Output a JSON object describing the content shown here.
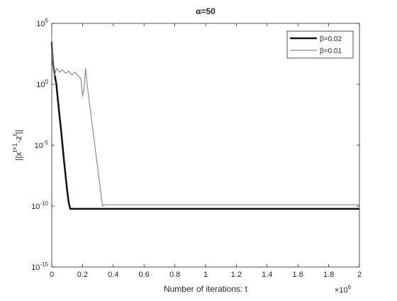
{
  "chart_data": {
    "type": "line",
    "title": "α=50",
    "xlabel": "Number of iterations: t",
    "x_multiplier": {
      "base": "×10",
      "exponent": "6"
    },
    "ylabel": [
      {
        "text": "||x"
      },
      {
        "text": "t+1",
        "sup": true
      },
      {
        "text": "-z"
      },
      {
        "text": "t",
        "sup": true
      },
      {
        "text": "||"
      }
    ],
    "xlim": [
      0,
      2
    ],
    "xticks": [
      0,
      0.2,
      0.4,
      0.6,
      0.8,
      1,
      1.2,
      1.4,
      1.6,
      1.8,
      2
    ],
    "ylim": [
      1e-15,
      100000
    ],
    "log_y": true,
    "yticks": [
      {
        "value": 1e-15,
        "label": "10",
        "exponent": "-15"
      },
      {
        "value": 1e-10,
        "label": "10",
        "exponent": "-10"
      },
      {
        "value": 1e-05,
        "label": "10",
        "exponent": "-5"
      },
      {
        "value": 1,
        "label": "10",
        "exponent": "0"
      },
      {
        "value": 100000,
        "label": "10",
        "exponent": "5"
      }
    ],
    "legend": "upper right",
    "series": [
      {
        "name": "β=0.02",
        "color": "#111111",
        "width": 2.5,
        "x": [
          0,
          0.005,
          0.01,
          0.02,
          0.03,
          0.04,
          0.05,
          0.06,
          0.07,
          0.08,
          0.09,
          0.1,
          0.11,
          0.12,
          0.13,
          2
        ],
        "values": [
          3000,
          200,
          30,
          5,
          1,
          0.05,
          0.003,
          0.0002,
          1e-05,
          5e-07,
          3e-08,
          2e-09,
          2e-10,
          6e-11,
          6e-11,
          6e-11
        ]
      },
      {
        "name": "β=0.01",
        "color": "#8a8a8a",
        "width": 1.2,
        "x": [
          0,
          0.005,
          0.01,
          0.02,
          0.03,
          0.05,
          0.07,
          0.09,
          0.11,
          0.13,
          0.15,
          0.17,
          0.19,
          0.2,
          0.21,
          0.22,
          0.23,
          0.25,
          0.27,
          0.29,
          0.31,
          0.33,
          0.34,
          2
        ],
        "values": [
          10000,
          300,
          20,
          5,
          20,
          10,
          15,
          8,
          12,
          6,
          10,
          5,
          3,
          0.1,
          0.5,
          20,
          1,
          0.01,
          0.0001,
          1e-06,
          1e-08,
          1e-10,
          1.3e-10,
          1.3e-10
        ]
      }
    ]
  }
}
